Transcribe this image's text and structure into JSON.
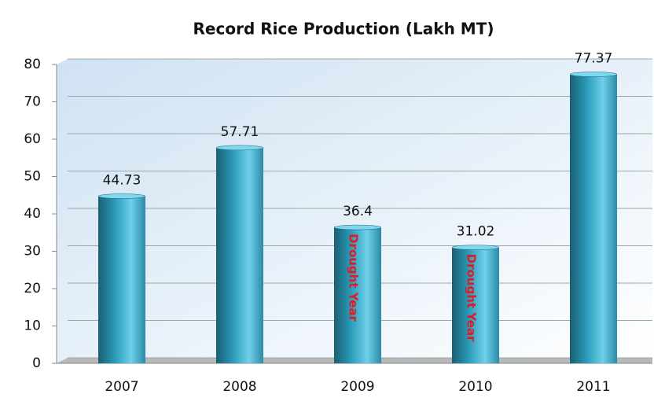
{
  "chart_data": {
    "type": "bar",
    "title": "Record Rice Production (Lakh MT)",
    "categories": [
      "2007",
      "2008",
      "2009",
      "2010",
      "2011"
    ],
    "values": [
      44.73,
      57.71,
      36.4,
      31.02,
      77.37
    ],
    "bar_annotations": [
      null,
      null,
      "Drought Year",
      "Drought Year",
      null
    ],
    "color": "#2a9ab8",
    "ylim": [
      0,
      80
    ],
    "yticks": [
      0,
      10,
      20,
      30,
      40,
      50,
      60,
      70,
      80
    ],
    "grid": true
  }
}
